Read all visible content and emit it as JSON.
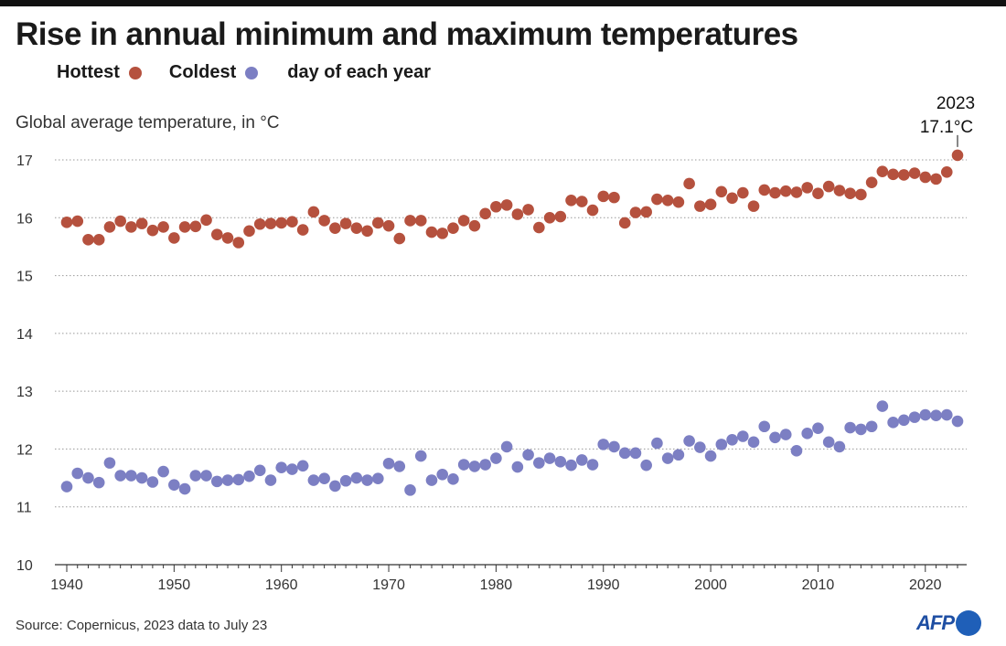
{
  "title": "Rise in annual minimum and maximum temperatures",
  "legend": {
    "hottest_label": "Hottest",
    "coldest_label": "Coldest",
    "suffix": "day of each year"
  },
  "ylabel": "Global average temperature, in °C",
  "source": "Source: Copernicus, 2023 data to July 23",
  "logo": "AFP",
  "colors": {
    "hottest": "#b5513e",
    "coldest": "#7c7fc3",
    "grid": "#999999",
    "axis": "#333333"
  },
  "annotation": {
    "year": "2023",
    "value": "17.1°C"
  },
  "chart_data": {
    "type": "scatter",
    "x": [
      1940,
      1941,
      1942,
      1943,
      1944,
      1945,
      1946,
      1947,
      1948,
      1949,
      1950,
      1951,
      1952,
      1953,
      1954,
      1955,
      1956,
      1957,
      1958,
      1959,
      1960,
      1961,
      1962,
      1963,
      1964,
      1965,
      1966,
      1967,
      1968,
      1969,
      1970,
      1971,
      1972,
      1973,
      1974,
      1975,
      1976,
      1977,
      1978,
      1979,
      1980,
      1981,
      1982,
      1983,
      1984,
      1985,
      1986,
      1987,
      1988,
      1989,
      1990,
      1991,
      1992,
      1993,
      1994,
      1995,
      1996,
      1997,
      1998,
      1999,
      2000,
      2001,
      2002,
      2003,
      2004,
      2005,
      2006,
      2007,
      2008,
      2009,
      2010,
      2011,
      2012,
      2013,
      2014,
      2015,
      2016,
      2017,
      2018,
      2019,
      2020,
      2021,
      2022,
      2023
    ],
    "series": [
      {
        "name": "Hottest",
        "values": [
          15.92,
          15.94,
          15.62,
          15.62,
          15.84,
          15.94,
          15.84,
          15.9,
          15.78,
          15.84,
          15.65,
          15.84,
          15.85,
          15.96,
          15.71,
          15.65,
          15.57,
          15.77,
          15.89,
          15.9,
          15.91,
          15.93,
          15.79,
          16.1,
          15.95,
          15.82,
          15.9,
          15.82,
          15.77,
          15.91,
          15.86,
          15.64,
          15.95,
          15.95,
          15.75,
          15.73,
          15.82,
          15.95,
          15.86,
          16.07,
          16.19,
          16.22,
          16.06,
          16.14,
          15.83,
          16.0,
          16.02,
          16.3,
          16.28,
          16.13,
          16.37,
          16.35,
          15.91,
          16.09,
          16.1,
          16.32,
          16.3,
          16.27,
          16.59,
          16.2,
          16.23,
          16.45,
          16.34,
          16.43,
          16.2,
          16.48,
          16.43,
          16.46,
          16.44,
          16.52,
          16.42,
          16.54,
          16.47,
          16.42,
          16.4,
          16.61,
          16.8,
          16.75,
          16.74,
          16.77,
          16.7,
          16.67,
          16.79,
          17.08
        ]
      },
      {
        "name": "Coldest",
        "values": [
          11.35,
          11.58,
          11.5,
          11.42,
          11.76,
          11.54,
          11.54,
          11.5,
          11.43,
          11.61,
          11.38,
          11.31,
          11.54,
          11.54,
          11.44,
          11.46,
          11.47,
          11.53,
          11.63,
          11.46,
          11.68,
          11.65,
          11.71,
          11.46,
          11.49,
          11.36,
          11.45,
          11.5,
          11.46,
          11.49,
          11.75,
          11.7,
          11.29,
          11.88,
          11.46,
          11.56,
          11.48,
          11.73,
          11.7,
          11.73,
          11.84,
          12.04,
          11.69,
          11.9,
          11.76,
          11.84,
          11.78,
          11.72,
          11.81,
          11.73,
          12.08,
          12.04,
          11.93,
          11.93,
          11.72,
          12.1,
          11.84,
          11.9,
          12.14,
          12.03,
          11.88,
          12.08,
          12.16,
          12.22,
          12.12,
          12.39,
          12.2,
          12.25,
          11.97,
          12.27,
          12.36,
          12.12,
          12.04,
          12.37,
          12.34,
          12.39,
          12.74,
          12.46,
          12.5,
          12.55,
          12.59,
          12.58,
          12.59,
          12.48
        ]
      }
    ],
    "xlim": [
      1940,
      2023
    ],
    "ylim": [
      10,
      17
    ],
    "xticks": [
      "1940",
      "1950",
      "1960",
      "1970",
      "1980",
      "1990",
      "2000",
      "2010",
      "2020"
    ],
    "yticks": [
      "10",
      "11",
      "12",
      "13",
      "14",
      "15",
      "16",
      "17"
    ],
    "grid": "horizontal dotted"
  }
}
